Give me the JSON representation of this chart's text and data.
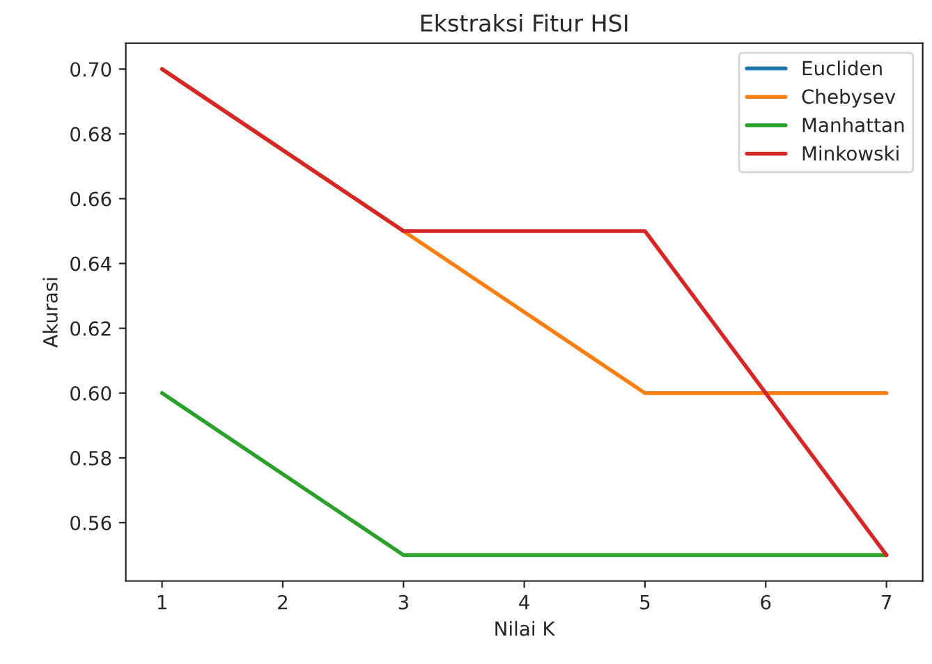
{
  "chart_data": {
    "type": "line",
    "title": "Ekstraksi Fitur HSI",
    "xlabel": "Nilai K",
    "ylabel": "Akurasi",
    "x": [
      1,
      3,
      5,
      7
    ],
    "series": [
      {
        "name": "Eucliden",
        "color": "#1f77b4",
        "values": [
          null,
          null,
          null,
          null
        ]
      },
      {
        "name": "Chebysev",
        "color": "#ff7f0e",
        "values": [
          0.7,
          0.65,
          0.6,
          0.6
        ]
      },
      {
        "name": "Manhattan",
        "color": "#2ca02c",
        "values": [
          0.6,
          0.55,
          0.55,
          0.55
        ]
      },
      {
        "name": "Minkowski",
        "color": "#d62728",
        "values": [
          0.7,
          0.65,
          0.65,
          0.55
        ]
      }
    ],
    "xlim": [
      0.7,
      7.3
    ],
    "xticks": [
      1,
      2,
      3,
      4,
      5,
      6,
      7
    ],
    "ylim": [
      0.542,
      0.708
    ],
    "yticks": [
      0.56,
      0.58,
      {
        "value": 0.6,
        "label": "0.60"
      },
      0.62,
      0.64,
      0.66,
      0.68,
      {
        "value": 0.7,
        "label": "0.70"
      }
    ],
    "grid": false,
    "legend": "top right",
    "marker": "none",
    "line_style": "solid"
  }
}
